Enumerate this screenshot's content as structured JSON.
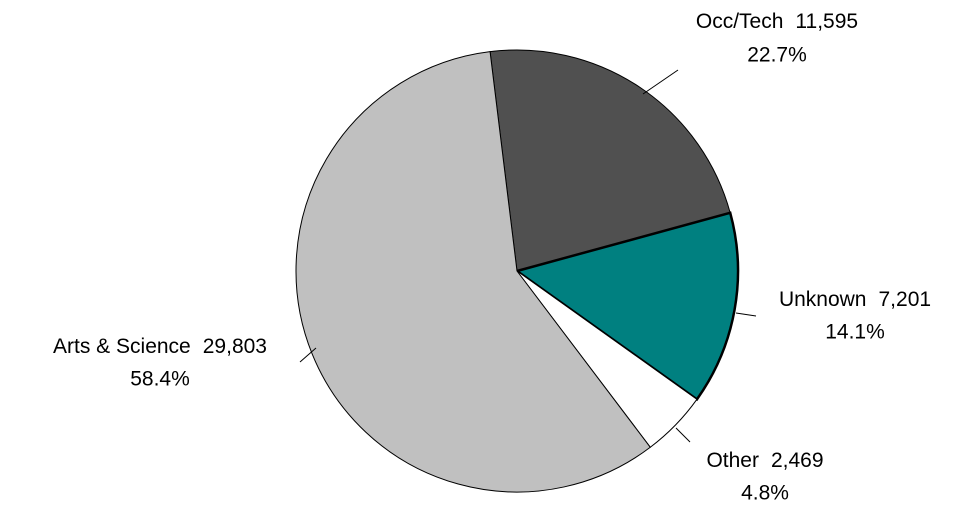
{
  "chart_data": {
    "type": "pie",
    "categories": [
      "Occ/Tech",
      "Unknown",
      "Other",
      "Arts & Science"
    ],
    "values": [
      11595,
      7201,
      2469,
      29803
    ],
    "value_labels": [
      "11,595",
      "7,201",
      "2,469",
      "29,803"
    ],
    "percent_labels": [
      "22.7%",
      "14.1%",
      "4.8%",
      "58.4%"
    ],
    "colors": [
      "#505050",
      "#008080",
      "#ffffff",
      "#c0c0c0"
    ]
  }
}
